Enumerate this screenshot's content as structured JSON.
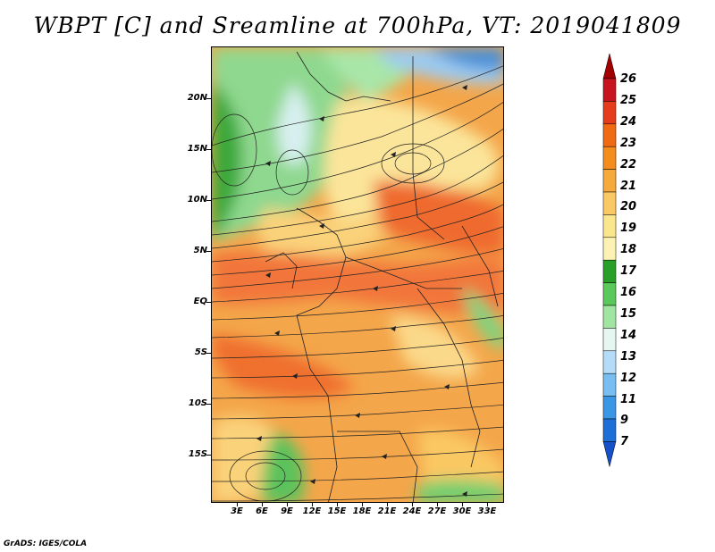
{
  "title": "WBPT [C] and Sreamline at 700hPa, VT: 2019041809",
  "credit": "GrADS: IGES/COLA",
  "lat_labels": [
    "20N",
    "15N",
    "10N",
    "5N",
    "EQ",
    "5S",
    "10S",
    "15S"
  ],
  "lon_labels": [
    "3E",
    "6E",
    "9E",
    "12E",
    "15E",
    "18E",
    "21E",
    "24E",
    "27E",
    "30E",
    "33E"
  ],
  "colorbar": {
    "labels": [
      "26",
      "25",
      "24",
      "23",
      "22",
      "21",
      "20",
      "19",
      "18",
      "17",
      "16",
      "15",
      "14",
      "13",
      "12",
      "11",
      "9",
      "7"
    ],
    "colors": [
      "#a00000",
      "#c8141e",
      "#e63c1e",
      "#f06a14",
      "#f58c1e",
      "#f7aa3c",
      "#fac864",
      "#fae68c",
      "#fcf2b4",
      "#28a028",
      "#5ac85a",
      "#a0e6a0",
      "#e6f6f0",
      "#b4dcf8",
      "#78bef0",
      "#3c96e6",
      "#1e6ed8",
      "#1450c8"
    ]
  },
  "chart_data": {
    "type": "heatmap",
    "title": "WBPT [C] and Sreamline at 700hPa, VT: 2019041809",
    "variable": "wet-bulb potential temperature (C) with 700hPa streamlines",
    "x_ticks": [
      "3E",
      "6E",
      "9E",
      "12E",
      "15E",
      "18E",
      "21E",
      "24E",
      "27E",
      "30E",
      "33E"
    ],
    "y_ticks": [
      "20N",
      "15N",
      "10N",
      "5N",
      "EQ",
      "5S",
      "10S",
      "15S"
    ],
    "colorbar_levels": [
      7,
      9,
      11,
      12,
      13,
      14,
      15,
      16,
      17,
      18,
      19,
      20,
      21,
      22,
      23,
      24,
      25,
      26
    ]
  }
}
